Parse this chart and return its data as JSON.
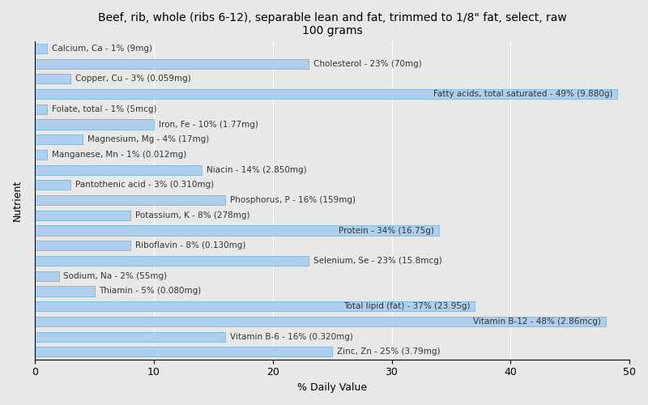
{
  "title": "Beef, rib, whole (ribs 6-12), separable lean and fat, trimmed to 1/8\" fat, select, raw\n100 grams",
  "xlabel": "% Daily Value",
  "ylabel": "Nutrient",
  "xlim": [
    0,
    50
  ],
  "background_color": "#e8e8e8",
  "bar_color": "#aed0ee",
  "bar_edge_color": "#6aaed6",
  "nutrients": [
    {
      "label": "Calcium, Ca - 1% (9mg)",
      "value": 1
    },
    {
      "label": "Cholesterol - 23% (70mg)",
      "value": 23
    },
    {
      "label": "Copper, Cu - 3% (0.059mg)",
      "value": 3
    },
    {
      "label": "Fatty acids, total saturated - 49% (9.880g)",
      "value": 49
    },
    {
      "label": "Folate, total - 1% (5mcg)",
      "value": 1
    },
    {
      "label": "Iron, Fe - 10% (1.77mg)",
      "value": 10
    },
    {
      "label": "Magnesium, Mg - 4% (17mg)",
      "value": 4
    },
    {
      "label": "Manganese, Mn - 1% (0.012mg)",
      "value": 1
    },
    {
      "label": "Niacin - 14% (2.850mg)",
      "value": 14
    },
    {
      "label": "Pantothenic acid - 3% (0.310mg)",
      "value": 3
    },
    {
      "label": "Phosphorus, P - 16% (159mg)",
      "value": 16
    },
    {
      "label": "Potassium, K - 8% (278mg)",
      "value": 8
    },
    {
      "label": "Protein - 34% (16.75g)",
      "value": 34
    },
    {
      "label": "Riboflavin - 8% (0.130mg)",
      "value": 8
    },
    {
      "label": "Selenium, Se - 23% (15.8mcg)",
      "value": 23
    },
    {
      "label": "Sodium, Na - 2% (55mg)",
      "value": 2
    },
    {
      "label": "Thiamin - 5% (0.080mg)",
      "value": 5
    },
    {
      "label": "Total lipid (fat) - 37% (23.95g)",
      "value": 37
    },
    {
      "label": "Vitamin B-12 - 48% (2.86mcg)",
      "value": 48
    },
    {
      "label": "Vitamin B-6 - 16% (0.320mg)",
      "value": 16
    },
    {
      "label": "Zinc, Zn - 25% (3.79mg)",
      "value": 25
    }
  ],
  "title_fontsize": 10,
  "label_fontsize": 7.5,
  "axis_fontsize": 9,
  "tick_fontsize": 9,
  "inside_label_threshold": 30
}
